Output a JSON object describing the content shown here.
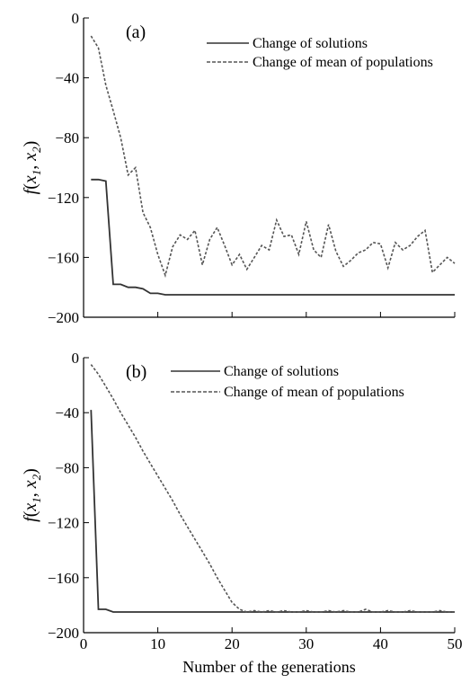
{
  "chart_data": [
    {
      "type": "line",
      "panel_label": "(a)",
      "ylabel": {
        "f": "f",
        "open": "(",
        "x": "x",
        "sub1": "1",
        "comma": ", ",
        "sub2": "2",
        "close": ")"
      },
      "ylim": [
        -200,
        0
      ],
      "yticks": [
        0,
        -40,
        -80,
        -120,
        -160,
        -200
      ],
      "xlim": [
        0,
        50
      ],
      "legend_position": "top-right",
      "series": [
        {
          "name": "Change of solutions",
          "style": "solid",
          "color": "#333333",
          "x": [
            1,
            2,
            3,
            4,
            5,
            6,
            7,
            8,
            9,
            10,
            11,
            12,
            13,
            14,
            15,
            16,
            17,
            18,
            19,
            20,
            21,
            22,
            23,
            24,
            25,
            26,
            27,
            28,
            29,
            30,
            31,
            32,
            33,
            34,
            35,
            36,
            37,
            38,
            39,
            40,
            41,
            42,
            43,
            44,
            45,
            46,
            47,
            48,
            49,
            50
          ],
          "y": [
            -108,
            -108,
            -109,
            -178,
            -178,
            -180,
            -180,
            -181,
            -184,
            -184,
            -185,
            -185,
            -185,
            -185,
            -185,
            -185,
            -185,
            -185,
            -185,
            -185,
            -185,
            -185,
            -185,
            -185,
            -185,
            -185,
            -185,
            -185,
            -185,
            -185,
            -185,
            -185,
            -185,
            -185,
            -185,
            -185,
            -185,
            -185,
            -185,
            -185,
            -185,
            -185,
            -185,
            -185,
            -185,
            -185,
            -185,
            -185,
            -185,
            -185
          ]
        },
        {
          "name": "Change of mean of populations",
          "style": "dashed",
          "color": "#555555",
          "x": [
            1,
            2,
            3,
            4,
            5,
            6,
            7,
            8,
            9,
            10,
            11,
            12,
            13,
            14,
            15,
            16,
            17,
            18,
            19,
            20,
            21,
            22,
            23,
            24,
            25,
            26,
            27,
            28,
            29,
            30,
            31,
            32,
            33,
            34,
            35,
            36,
            37,
            38,
            39,
            40,
            41,
            42,
            43,
            44,
            45,
            46,
            47,
            48,
            49,
            50
          ],
          "y": [
            -12,
            -20,
            -45,
            -62,
            -80,
            -105,
            -100,
            -130,
            -140,
            -158,
            -172,
            -153,
            -145,
            -148,
            -142,
            -165,
            -148,
            -140,
            -152,
            -165,
            -158,
            -168,
            -160,
            -152,
            -155,
            -135,
            -146,
            -145,
            -158,
            -136,
            -155,
            -160,
            -138,
            -156,
            -166,
            -162,
            -157,
            -155,
            -150,
            -151,
            -167,
            -150,
            -155,
            -152,
            -146,
            -142,
            -170,
            -165,
            -160,
            -164
          ]
        }
      ]
    },
    {
      "type": "line",
      "panel_label": "(b)",
      "ylabel": {
        "f": "f",
        "open": "(",
        "x": "x",
        "sub1": "1",
        "comma": ", ",
        "sub2": "2",
        "close": ")"
      },
      "xlabel": "Number of the generations",
      "ylim": [
        -200,
        0
      ],
      "yticks": [
        0,
        -40,
        -80,
        -120,
        -160,
        -200
      ],
      "xlim": [
        0,
        50
      ],
      "xticks": [
        0,
        10,
        20,
        30,
        40,
        50
      ],
      "legend_position": "top-right",
      "series": [
        {
          "name": "Change of solutions",
          "style": "solid",
          "color": "#333333",
          "x": [
            1,
            2,
            3,
            4,
            5,
            6,
            7,
            8,
            9,
            10,
            11,
            12,
            13,
            14,
            15,
            16,
            17,
            18,
            19,
            20,
            21,
            22,
            23,
            24,
            25,
            26,
            27,
            28,
            29,
            30,
            31,
            32,
            33,
            34,
            35,
            36,
            37,
            38,
            39,
            40,
            41,
            42,
            43,
            44,
            45,
            46,
            47,
            48,
            49,
            50
          ],
          "y": [
            -38,
            -183,
            -183,
            -185,
            -185,
            -185,
            -185,
            -185,
            -185,
            -185,
            -185,
            -185,
            -185,
            -185,
            -185,
            -185,
            -185,
            -185,
            -185,
            -185,
            -185,
            -185,
            -185,
            -185,
            -185,
            -185,
            -185,
            -185,
            -185,
            -185,
            -185,
            -185,
            -185,
            -185,
            -185,
            -185,
            -185,
            -185,
            -185,
            -185,
            -185,
            -185,
            -185,
            -185,
            -185,
            -185,
            -185,
            -185,
            -185,
            -185
          ]
        },
        {
          "name": "Change of mean of populations",
          "style": "dashed",
          "color": "#555555",
          "x": [
            1,
            2,
            3,
            4,
            5,
            6,
            7,
            8,
            9,
            10,
            11,
            12,
            13,
            14,
            15,
            16,
            17,
            18,
            19,
            20,
            21,
            22,
            23,
            24,
            25,
            26,
            27,
            28,
            29,
            30,
            31,
            32,
            33,
            34,
            35,
            36,
            37,
            38,
            39,
            40,
            41,
            42,
            43,
            44,
            45,
            46,
            47,
            48,
            49,
            50
          ],
          "y": [
            -5,
            -12,
            -21,
            -30,
            -40,
            -49,
            -58,
            -68,
            -77,
            -86,
            -95,
            -104,
            -114,
            -123,
            -132,
            -141,
            -150,
            -160,
            -169,
            -178,
            -183,
            -185,
            -184,
            -185,
            -184,
            -185,
            -184,
            -185,
            -185,
            -184,
            -185,
            -185,
            -184,
            -185,
            -184,
            -185,
            -185,
            -183,
            -185,
            -185,
            -184,
            -185,
            -185,
            -184,
            -185,
            -185,
            -185,
            -184,
            -185,
            -185
          ]
        }
      ]
    }
  ]
}
